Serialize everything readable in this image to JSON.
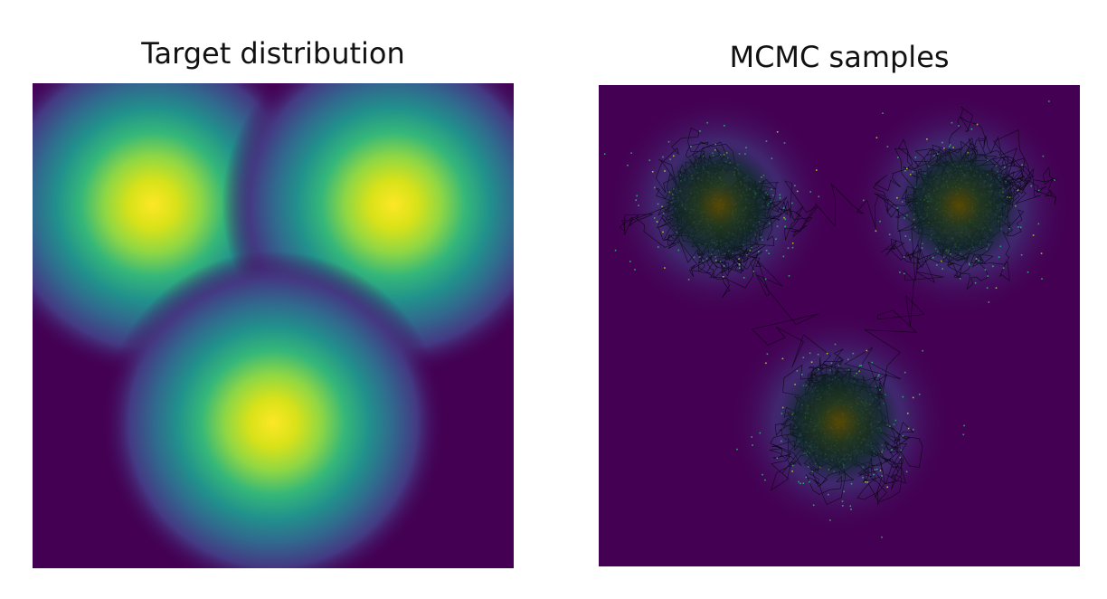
{
  "chart_data": [
    {
      "type": "heatmap",
      "title": "Target distribution",
      "colormap": "viridis",
      "axes_visible": false,
      "xlim": [
        0,
        1
      ],
      "ylim": [
        0,
        1
      ],
      "background_color": "#440154",
      "peak_color": "#fde725",
      "modes": [
        {
          "x": 0.25,
          "y": 0.75,
          "sigma": 0.115,
          "weight": 1
        },
        {
          "x": 0.75,
          "y": 0.75,
          "sigma": 0.115,
          "weight": 1
        },
        {
          "x": 0.5,
          "y": 0.3,
          "sigma": 0.115,
          "weight": 1
        }
      ]
    },
    {
      "type": "scatter",
      "title": "MCMC samples",
      "axes_visible": false,
      "xlim": [
        0,
        1
      ],
      "ylim": [
        0,
        1
      ],
      "background_color": "#440154",
      "trace_color": "#000000",
      "sample_color": "#35b779",
      "clusters": [
        {
          "x": 0.25,
          "y": 0.75,
          "spread": 0.12
        },
        {
          "x": 0.75,
          "y": 0.75,
          "spread": 0.12
        },
        {
          "x": 0.5,
          "y": 0.3,
          "spread": 0.12
        }
      ]
    }
  ]
}
